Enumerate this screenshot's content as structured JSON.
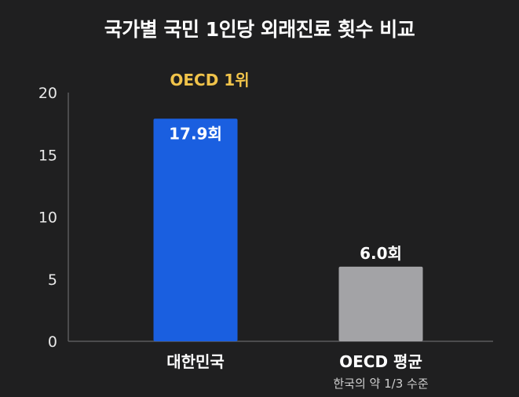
{
  "chart_data": {
    "type": "bar",
    "title": "국가별 국민 1인당 외래진료 횟수 비교",
    "categories": [
      "대한민국",
      "OECD 평균"
    ],
    "values": [
      17.9,
      6.0
    ],
    "data_labels": [
      "17.9회",
      "6.0회"
    ],
    "sublabels": [
      "",
      "한국의 약 1/3 수준"
    ],
    "annotation": "OECD 1위",
    "yticks": [
      "0",
      "5",
      "10",
      "15",
      "20"
    ],
    "ylim": [
      0,
      20
    ],
    "xlabel": "",
    "ylabel": "",
    "grid": false,
    "colors": {
      "bar_korea": "#1a5fe0",
      "bar_oecd": "#a3a3a6",
      "annotation": "#f0c34a",
      "axis": "#5a5a5c",
      "background": "#1f1f20"
    }
  }
}
